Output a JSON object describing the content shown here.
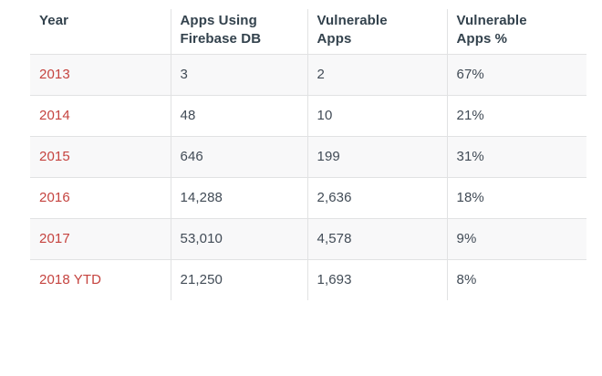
{
  "chart_data": {
    "type": "table",
    "columns": [
      "Year",
      "Apps Using Firebase DB",
      "Vulnerable Apps",
      "Vulnerable Apps %"
    ],
    "rows": [
      [
        "2013",
        "3",
        "2",
        "67%"
      ],
      [
        "2014",
        "48",
        "10",
        "21%"
      ],
      [
        "2015",
        "646",
        "199",
        "31%"
      ],
      [
        "2016",
        "14,288",
        "2,636",
        "18%"
      ],
      [
        "2017",
        "53,010",
        "4,578",
        "9%"
      ],
      [
        "2018 YTD",
        "21,250",
        "1,693",
        "8%"
      ]
    ],
    "years": [
      "2013",
      "2014",
      "2015",
      "2016",
      "2017",
      "2018 YTD"
    ],
    "apps_using_firebase_db": [
      3,
      48,
      646,
      14288,
      53010,
      21250
    ],
    "vulnerable_apps": [
      2,
      10,
      199,
      2636,
      4578,
      1693
    ],
    "vulnerable_apps_pct": [
      67,
      21,
      31,
      18,
      9,
      8
    ],
    "layout_hints": {
      "grid": "row and column separators, no outer border",
      "alternating_row_shading": true
    }
  },
  "table": {
    "header_labels": [
      "Year",
      "Apps Using\nFirebase DB",
      "Vulnerable\nApps",
      "Vulnerable\nApps %"
    ]
  },
  "colors": {
    "year_text": "#c5433f",
    "header_text": "#33424d",
    "cell_text": "#414b56",
    "border": "#e1e2e3",
    "row_shade": "#f8f8f9",
    "background": "#ffffff"
  }
}
